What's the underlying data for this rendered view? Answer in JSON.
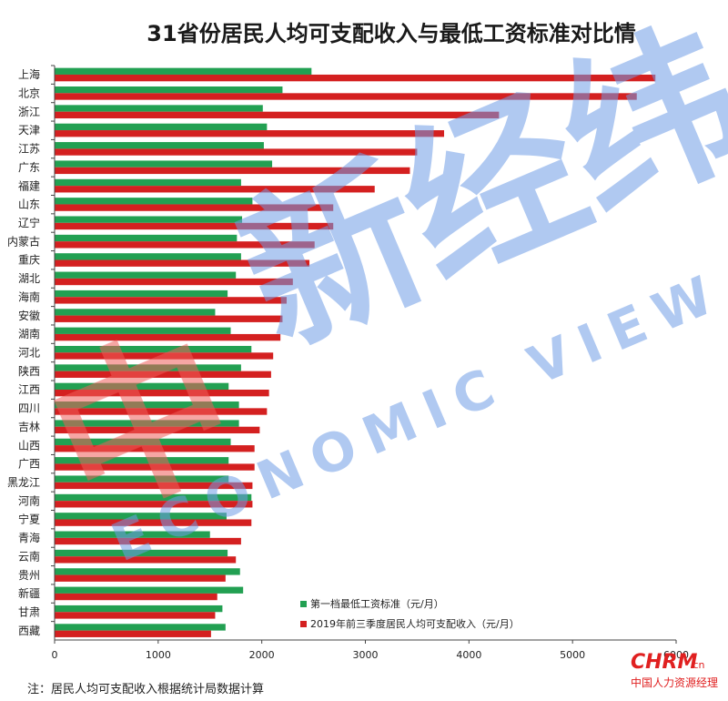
{
  "chart_data": {
    "type": "bar",
    "orientation": "horizontal",
    "title": "31省份居民人均可支配收入与最低工资标准对比情",
    "xlim": [
      0,
      6000
    ],
    "x_ticks": [
      "0",
      "1000",
      "2000",
      "3000",
      "4000",
      "5000",
      "6000"
    ],
    "grid": false,
    "legend_position": "bottom-right",
    "categories": [
      "上海",
      "北京",
      "浙江",
      "天津",
      "江苏",
      "广东",
      "福建",
      "山东",
      "辽宁",
      "内蒙古",
      "重庆",
      "湖北",
      "海南",
      "安徽",
      "湖南",
      "河北",
      "陕西",
      "江西",
      "四川",
      "吉林",
      "山西",
      "广西",
      "黑龙江",
      "河南",
      "宁夏",
      "青海",
      "云南",
      "贵州",
      "新疆",
      "甘肃",
      "西藏"
    ],
    "series": [
      {
        "name": "第一档最低工资标准（元/月）",
        "color": "#22a052",
        "values": [
          2480,
          2200,
          2010,
          2050,
          2020,
          2100,
          1800,
          1910,
          1810,
          1760,
          1800,
          1750,
          1670,
          1550,
          1700,
          1900,
          1800,
          1680,
          1780,
          1780,
          1700,
          1680,
          1680,
          1900,
          1660,
          1500,
          1670,
          1790,
          1820,
          1620,
          1650
        ]
      },
      {
        "name": "2019年前三季度居民人均可支配收入（元/月）",
        "color": "#d42020",
        "values": [
          5800,
          5620,
          4290,
          3760,
          3500,
          3430,
          3090,
          2690,
          2690,
          2510,
          2460,
          2300,
          2240,
          2200,
          2180,
          2110,
          2090,
          2070,
          2050,
          1980,
          1930,
          1930,
          1910,
          1910,
          1900,
          1800,
          1750,
          1650,
          1570,
          1550,
          1510
        ]
      }
    ]
  },
  "watermark": {
    "brand_cn": "中新经纬",
    "brand_en": "ECONOMIC VIEW",
    "colors": {
      "red": "#ee5e5a",
      "blue": "#6f9de6"
    }
  },
  "footnote": "注：居民人均可支配收入根据统计局数据计算",
  "logo": {
    "main": "CHRM",
    "suffix": ".cn",
    "sub": "中国人力资源经理"
  }
}
